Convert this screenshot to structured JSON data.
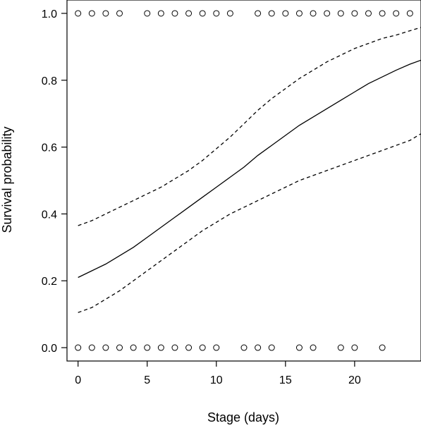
{
  "chart_data": {
    "type": "line",
    "xlabel": "Stage (days)",
    "ylabel": "Survival probability",
    "xlim": [
      -0.8,
      24.8
    ],
    "ylim": [
      -0.04,
      1.04
    ],
    "x_ticks": [
      0,
      5,
      10,
      15,
      20
    ],
    "y_ticks": [
      0.0,
      0.2,
      0.4,
      0.6,
      0.8,
      1.0
    ],
    "x_tick_labels": [
      "0",
      "5",
      "10",
      "15",
      "20"
    ],
    "y_tick_labels": [
      "0.0",
      "0.2",
      "0.4",
      "0.6",
      "0.8",
      "1.0"
    ],
    "grid": false,
    "legend": "none",
    "series": [
      {
        "type": "line",
        "style": "solid",
        "x": [
          0,
          1,
          2,
          3,
          4,
          5,
          6,
          7,
          8,
          9,
          10,
          11,
          12,
          13,
          14,
          15,
          16,
          17,
          18,
          19,
          20,
          21,
          22,
          23,
          24,
          24.8
        ],
        "y": [
          0.21,
          0.23,
          0.25,
          0.275,
          0.3,
          0.33,
          0.36,
          0.39,
          0.42,
          0.45,
          0.48,
          0.51,
          0.54,
          0.575,
          0.605,
          0.635,
          0.665,
          0.69,
          0.715,
          0.74,
          0.765,
          0.79,
          0.81,
          0.83,
          0.848,
          0.86
        ]
      },
      {
        "type": "line",
        "style": "dashed",
        "x": [
          0,
          1,
          2,
          3,
          4,
          5,
          6,
          7,
          8,
          9,
          10,
          11,
          12,
          13,
          14,
          15,
          16,
          17,
          18,
          19,
          20,
          21,
          22,
          23,
          24,
          24.8
        ],
        "y": [
          0.365,
          0.38,
          0.4,
          0.42,
          0.44,
          0.46,
          0.48,
          0.505,
          0.53,
          0.56,
          0.595,
          0.63,
          0.67,
          0.71,
          0.745,
          0.775,
          0.805,
          0.83,
          0.855,
          0.875,
          0.895,
          0.91,
          0.925,
          0.935,
          0.948,
          0.958
        ]
      },
      {
        "type": "line",
        "style": "dashed",
        "x": [
          0,
          1,
          2,
          3,
          4,
          5,
          6,
          7,
          8,
          9,
          10,
          11,
          12,
          13,
          14,
          15,
          16,
          17,
          18,
          19,
          20,
          21,
          22,
          23,
          24,
          24.8
        ],
        "y": [
          0.105,
          0.12,
          0.145,
          0.17,
          0.2,
          0.23,
          0.26,
          0.29,
          0.32,
          0.35,
          0.375,
          0.4,
          0.42,
          0.44,
          0.46,
          0.48,
          0.5,
          0.515,
          0.53,
          0.545,
          0.56,
          0.575,
          0.59,
          0.605,
          0.62,
          0.64
        ]
      },
      {
        "type": "scatter",
        "marker": "open-circle",
        "x": [
          0,
          1,
          2,
          3,
          5,
          6,
          7,
          8,
          9,
          10,
          11,
          13,
          14,
          15,
          16,
          17,
          18,
          19,
          20,
          21,
          22,
          23,
          24
        ],
        "y": [
          1,
          1,
          1,
          1,
          1,
          1,
          1,
          1,
          1,
          1,
          1,
          1,
          1,
          1,
          1,
          1,
          1,
          1,
          1,
          1,
          1,
          1,
          1
        ]
      },
      {
        "type": "scatter",
        "marker": "open-circle",
        "x": [
          0,
          1,
          2,
          3,
          4,
          5,
          6,
          7,
          8,
          9,
          10,
          12,
          13,
          14,
          16,
          17,
          19,
          20,
          22
        ],
        "y": [
          0,
          0,
          0,
          0,
          0,
          0,
          0,
          0,
          0,
          0,
          0,
          0,
          0,
          0,
          0,
          0,
          0,
          0,
          0
        ]
      }
    ]
  }
}
